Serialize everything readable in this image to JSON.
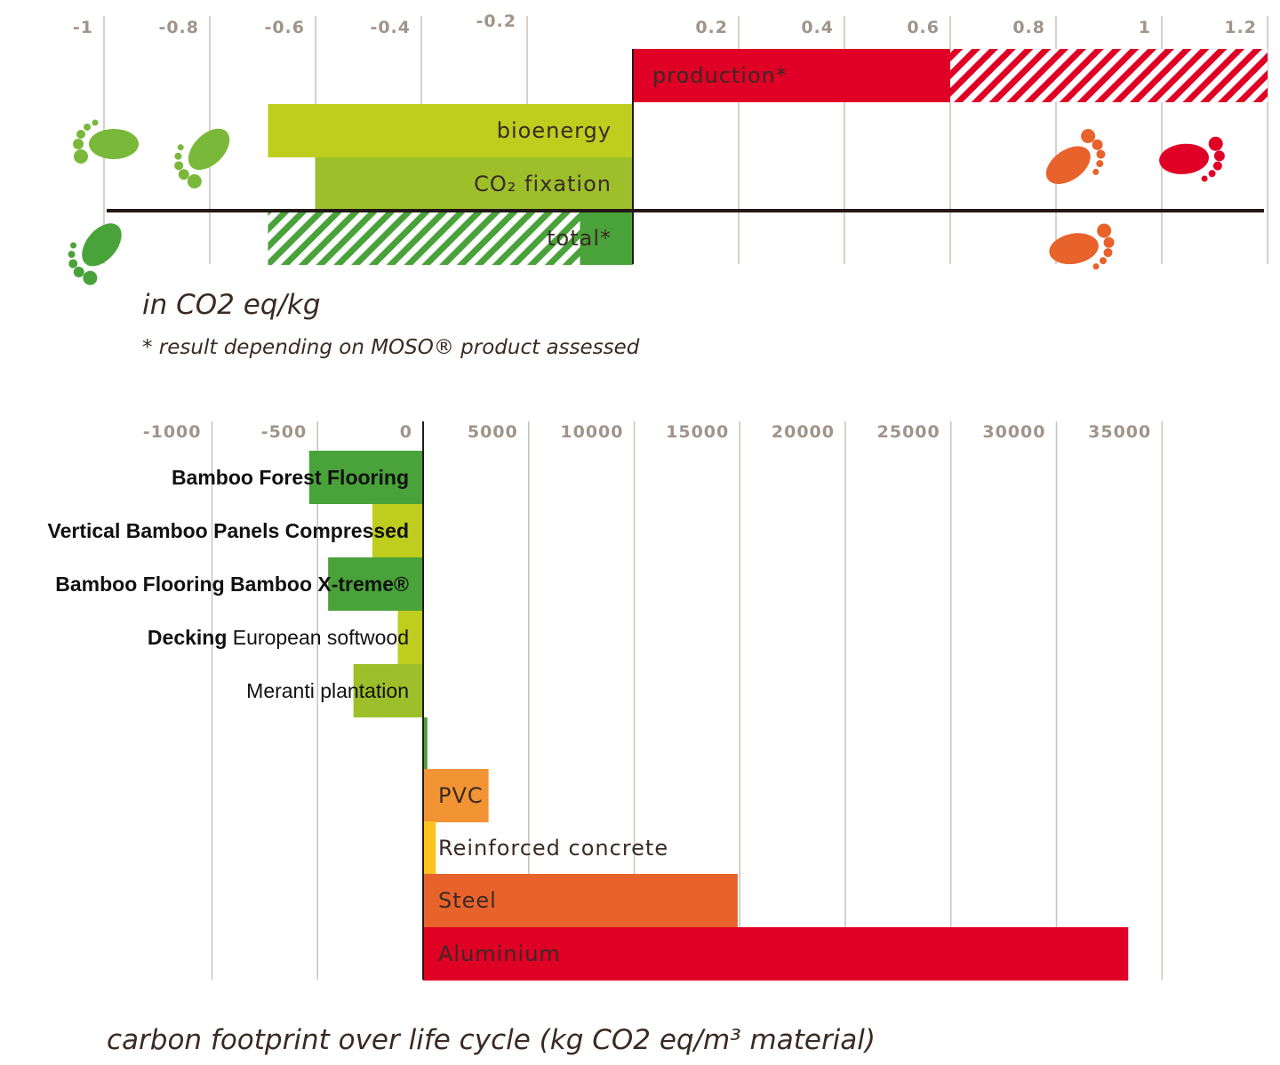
{
  "chart_data": [
    {
      "type": "bar",
      "orientation": "horizontal",
      "unit_label": "in CO2 eq/kg",
      "footnote": "* result depending on MOSO® product assessed",
      "xlim": [
        -1,
        1.2
      ],
      "x_ticks": [
        {
          "value": -1,
          "label": "-1"
        },
        {
          "value": -0.8,
          "label": "-0.8"
        },
        {
          "value": -0.6,
          "label": "-0.6"
        },
        {
          "value": -0.4,
          "label": "-0.4"
        },
        {
          "value": -0.2,
          "label": "-0.2"
        },
        {
          "value": 0.2,
          "label": "0.2"
        },
        {
          "value": 0.4,
          "label": "0.4"
        },
        {
          "value": 0.6,
          "label": "0.6"
        },
        {
          "value": 0.8,
          "label": "0.8"
        },
        {
          "value": 1,
          "label": "1"
        },
        {
          "value": 1.2,
          "label": "1.2"
        }
      ],
      "bars": [
        {
          "label": "production*",
          "start": 0,
          "end": 0.6,
          "range_end": 1.2,
          "color": "#e10025",
          "range_pattern": "hatched"
        },
        {
          "label": "bioenergy",
          "start": -0.69,
          "end": 0,
          "color": "#bfcd1f"
        },
        {
          "label": "CO₂ fixation",
          "start": -0.6,
          "end": 0,
          "color": "#9dc02a"
        },
        {
          "label": "total*",
          "start": -0.1,
          "end": 0,
          "range_start": -0.69,
          "color": "#4aa23a",
          "range_pattern": "hatched"
        }
      ],
      "colors": {
        "low_footprint": "#7ab83a",
        "mid_footprint": "#e8622c",
        "high_footprint": "#e10025"
      },
      "icons": [
        "green-footprint-icon",
        "green-footprint-icon",
        "green-footprint-icon",
        "orange-footprint-icon",
        "orange-footprint-icon",
        "red-footprint-icon"
      ]
    },
    {
      "type": "bar",
      "orientation": "horizontal",
      "xlabel": "carbon footprint over life cycle (kg CO2 eq/m³ material)",
      "x_scale": "split: linear -1000 to 0, then linear 0 to 35000",
      "x_ticks": [
        {
          "value": -1000,
          "label": "-1000"
        },
        {
          "value": -500,
          "label": "-500"
        },
        {
          "value": 0,
          "label": "0"
        },
        {
          "value": 5000,
          "label": "5000"
        },
        {
          "value": 10000,
          "label": "10000"
        },
        {
          "value": 15000,
          "label": "15000"
        },
        {
          "value": 20000,
          "label": "20000"
        },
        {
          "value": 25000,
          "label": "25000"
        },
        {
          "value": 30000,
          "label": "30000"
        },
        {
          "value": 35000,
          "label": "35000"
        }
      ],
      "bars": [
        {
          "bold": "Bamboo Forest Flooring",
          "plain": "",
          "value": -540,
          "color": "#4aa23a"
        },
        {
          "bold": "Vertical Bamboo Panels Compressed",
          "plain": "",
          "value": -240,
          "color": "#bfcd1f"
        },
        {
          "bold": "Bamboo Flooring Bamboo X-treme®",
          "plain": "",
          "value": -450,
          "color": "#4aa23a"
        },
        {
          "bold": "Decking",
          "plain": " European softwood",
          "value": -120,
          "color": "#bfcd1f"
        },
        {
          "bold": "",
          "plain": "Meranti plantation",
          "value": -330,
          "color": "#9dc02a"
        },
        {
          "bold": "",
          "plain": "",
          "value": 200,
          "color": "#4aa23a"
        },
        {
          "bold": "",
          "plain": "PVC",
          "value": 3100,
          "color": "#f29433"
        },
        {
          "bold": "",
          "plain": "Reinforced concrete",
          "value": 600,
          "color": "#fcc31e"
        },
        {
          "bold": "",
          "plain": "Steel",
          "value": 14900,
          "color": "#e8622c"
        },
        {
          "bold": "",
          "plain": "Aluminium",
          "value": 33400,
          "color": "#e10025"
        }
      ]
    }
  ]
}
